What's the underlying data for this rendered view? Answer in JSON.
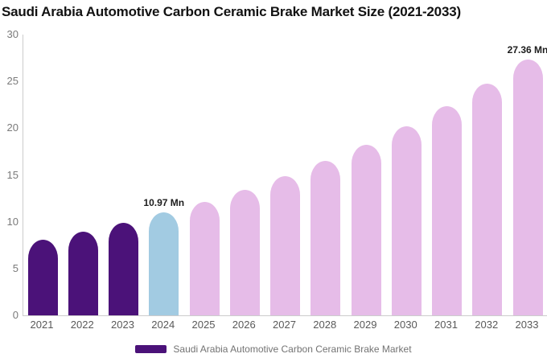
{
  "legend": {
    "label": "Saudi Arabia Automotive Carbon Ceramic Brake Market",
    "swatch_color": "#4B1279"
  },
  "colors": {
    "historical": "#4B1279",
    "current": "#A2CBE2",
    "forecast": "#E6BCE8",
    "axis_line": "#CCCCCC",
    "y_tick_text": "#7A7A7A",
    "x_tick_text": "#595959",
    "point_label_text": "#1C1C1C",
    "title_text": "#121212",
    "legend_text": "#737373",
    "background": "#FFFFFF"
  },
  "chart_data": {
    "type": "bar",
    "title": "Saudi Arabia Automotive Carbon Ceramic Brake Market Size (2021-2033)",
    "xlabel": "",
    "ylabel": "",
    "unit": "Mn",
    "ylim": [
      0,
      30
    ],
    "yticks": [
      0,
      5,
      10,
      15,
      20,
      25,
      30
    ],
    "grid": false,
    "legend_position": "bottom",
    "categories": [
      "2021",
      "2022",
      "2023",
      "2024",
      "2025",
      "2026",
      "2027",
      "2028",
      "2029",
      "2030",
      "2031",
      "2032",
      "2033"
    ],
    "values": [
      8.09,
      8.95,
      9.91,
      10.97,
      12.14,
      13.44,
      14.88,
      16.47,
      18.23,
      20.18,
      22.33,
      24.72,
      27.36
    ],
    "bar_groups": [
      "historical",
      "historical",
      "historical",
      "current",
      "forecast",
      "forecast",
      "forecast",
      "forecast",
      "forecast",
      "forecast",
      "forecast",
      "forecast",
      "forecast"
    ],
    "point_labels": [
      {
        "category": "2024",
        "text": "10.97 Mn"
      },
      {
        "category": "2033",
        "text": "27.36 Mn"
      }
    ],
    "series": [
      {
        "name": "Saudi Arabia Automotive Carbon Ceramic Brake Market",
        "values": [
          8.09,
          8.95,
          9.91,
          10.97,
          12.14,
          13.44,
          14.88,
          16.47,
          18.23,
          20.18,
          22.33,
          24.72,
          27.36
        ]
      }
    ]
  }
}
